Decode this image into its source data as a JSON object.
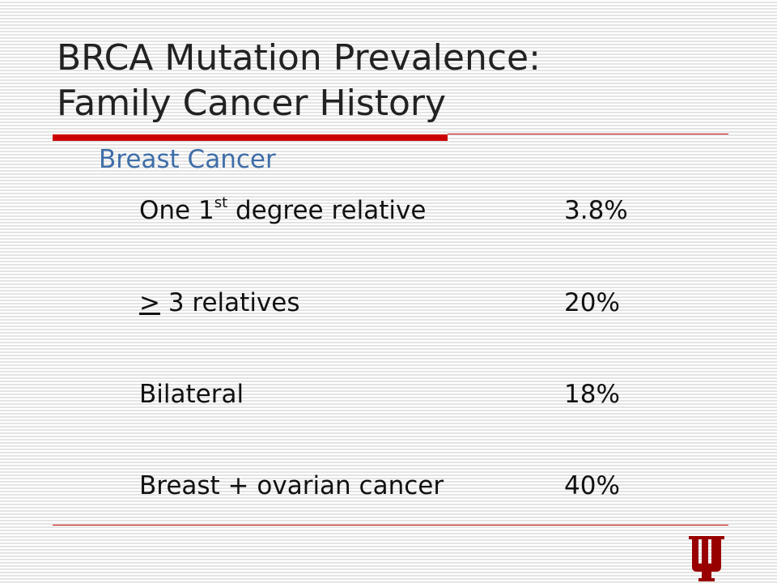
{
  "header": {
    "title_lines": [
      "BRCA Mutation Prevalence:",
      "Family Cancer History"
    ]
  },
  "section": "Breast Cancer",
  "rows": [
    {
      "label": {
        "before": "One 1",
        "sup": "st",
        "after": " degree relative"
      },
      "value": "3.8%"
    },
    {
      "label": {
        "underlined": ">",
        "after": " 3 relatives"
      },
      "value": "20%"
    },
    {
      "label": {
        "after": "Bilateral"
      },
      "value": "18%"
    },
    {
      "label": {
        "after": "Breast + ovarian cancer"
      },
      "value": "40%"
    }
  ]
}
